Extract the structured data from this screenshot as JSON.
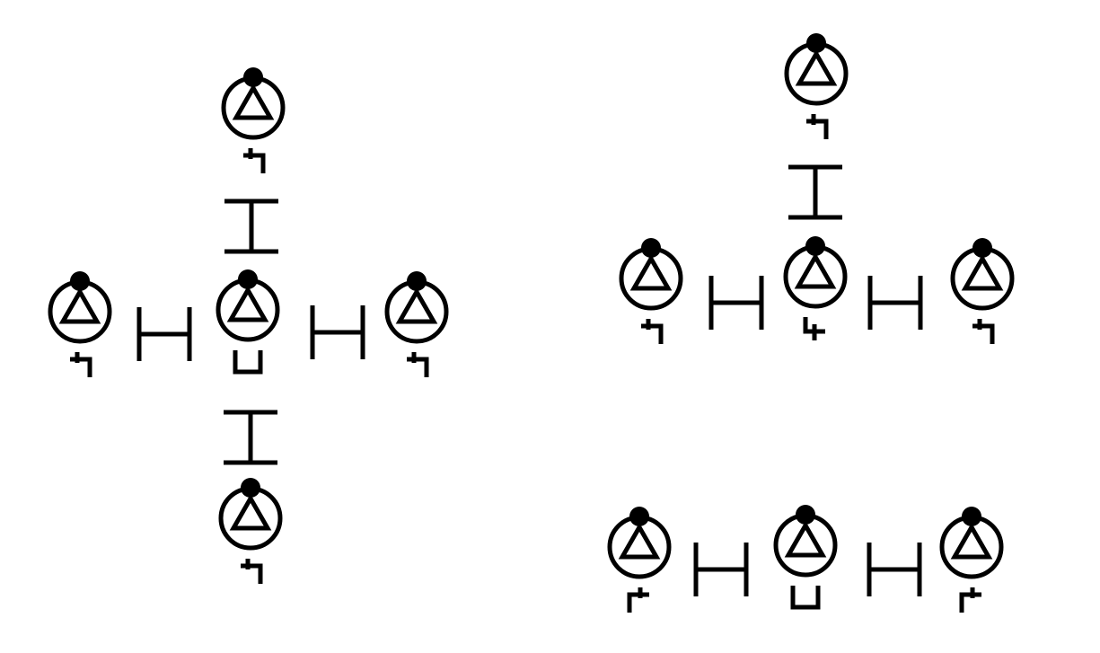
{
  "colors": {
    "ink": "#000000",
    "background": "#ffffff"
  },
  "groups": [
    {
      "name": "cross",
      "nodes": [
        {
          "name": "top",
          "marker": "hook-right"
        },
        {
          "name": "left",
          "marker": "hook-right"
        },
        {
          "name": "center",
          "marker": "cup"
        },
        {
          "name": "right",
          "marker": "hook-right"
        },
        {
          "name": "bottom",
          "marker": "hook-right"
        }
      ],
      "bonds": [
        {
          "name": "top-center",
          "orientation": "vertical"
        },
        {
          "name": "center-bottom",
          "orientation": "vertical"
        },
        {
          "name": "left-center",
          "orientation": "horizontal"
        },
        {
          "name": "center-right",
          "orientation": "horizontal"
        }
      ]
    },
    {
      "name": "t-shape",
      "nodes": [
        {
          "name": "top",
          "marker": "hook-right"
        },
        {
          "name": "left",
          "marker": "hook-right"
        },
        {
          "name": "center",
          "marker": "hook-down"
        },
        {
          "name": "right",
          "marker": "hook-right"
        }
      ],
      "bonds": [
        {
          "name": "top-center",
          "orientation": "vertical"
        },
        {
          "name": "left-center",
          "orientation": "horizontal"
        },
        {
          "name": "center-right",
          "orientation": "horizontal"
        }
      ]
    },
    {
      "name": "chain",
      "nodes": [
        {
          "name": "left",
          "marker": "hook-left"
        },
        {
          "name": "center",
          "marker": "cup"
        },
        {
          "name": "right",
          "marker": "hook-left"
        }
      ],
      "bonds": [
        {
          "name": "left-center",
          "orientation": "horizontal"
        },
        {
          "name": "center-right",
          "orientation": "horizontal"
        }
      ]
    }
  ]
}
